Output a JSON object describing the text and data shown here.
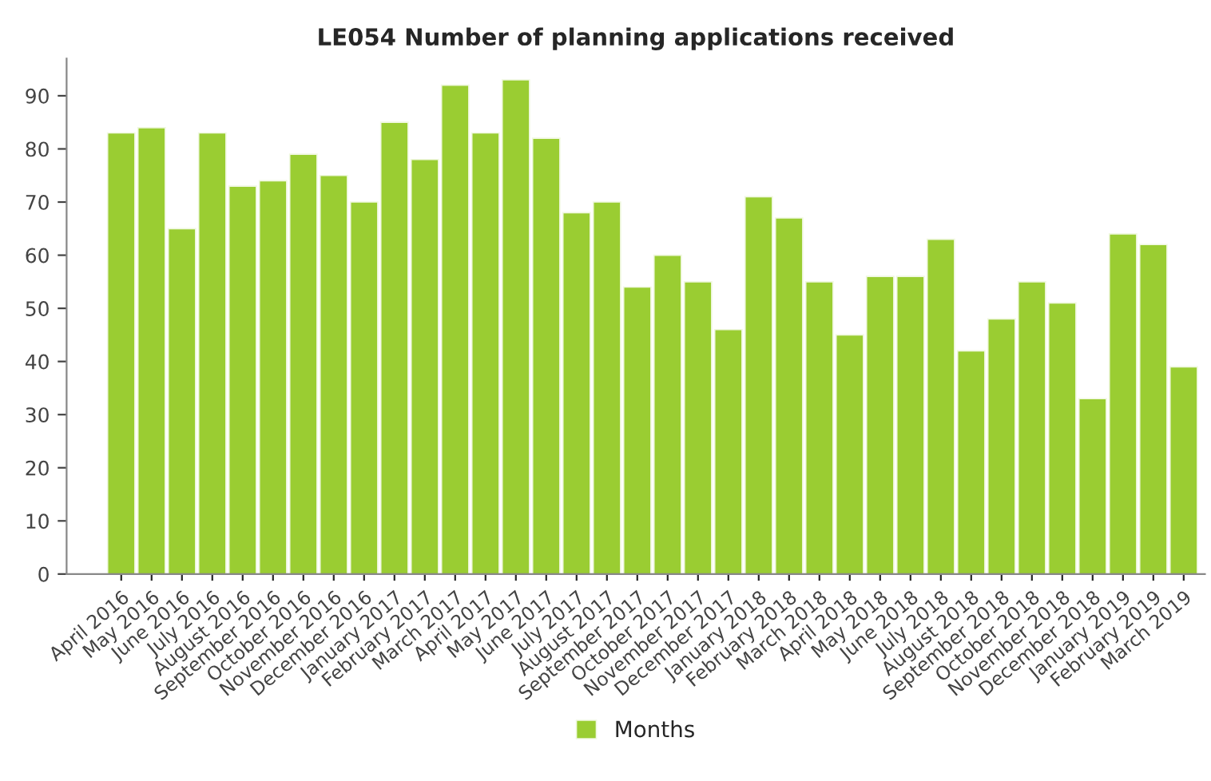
{
  "chart_data": {
    "type": "bar",
    "title": "LE054 Number of planning applications received",
    "categories": [
      "April 2016",
      "May 2016",
      "June 2016",
      "July 2016",
      "August 2016",
      "September 2016",
      "October 2016",
      "November 2016",
      "December 2016",
      "January 2017",
      "February 2017",
      "March 2017",
      "April 2017",
      "May 2017",
      "June 2017",
      "July 2017",
      "August 2017",
      "September 2017",
      "October 2017",
      "November 2017",
      "December 2017",
      "January 2018",
      "February 2018",
      "March 2018",
      "April 2018",
      "May 2018",
      "June 2018",
      "July 2018",
      "August 2018",
      "September 2018",
      "October 2018",
      "November 2018",
      "December 2018",
      "January 2019",
      "February 2019",
      "March 2019"
    ],
    "series": [
      {
        "name": "Months",
        "color": "#9acd32",
        "values": [
          83,
          84,
          65,
          83,
          73,
          74,
          79,
          75,
          70,
          85,
          78,
          92,
          83,
          93,
          82,
          68,
          70,
          54,
          60,
          55,
          46,
          71,
          67,
          55,
          45,
          56,
          56,
          63,
          42,
          48,
          55,
          51,
          33,
          64,
          62,
          39
        ]
      }
    ],
    "ylim": [
      0,
      97
    ],
    "yticks": [
      0,
      10,
      20,
      30,
      40,
      50,
      60,
      70,
      80,
      90
    ],
    "grid": false,
    "legend": "bottom"
  }
}
